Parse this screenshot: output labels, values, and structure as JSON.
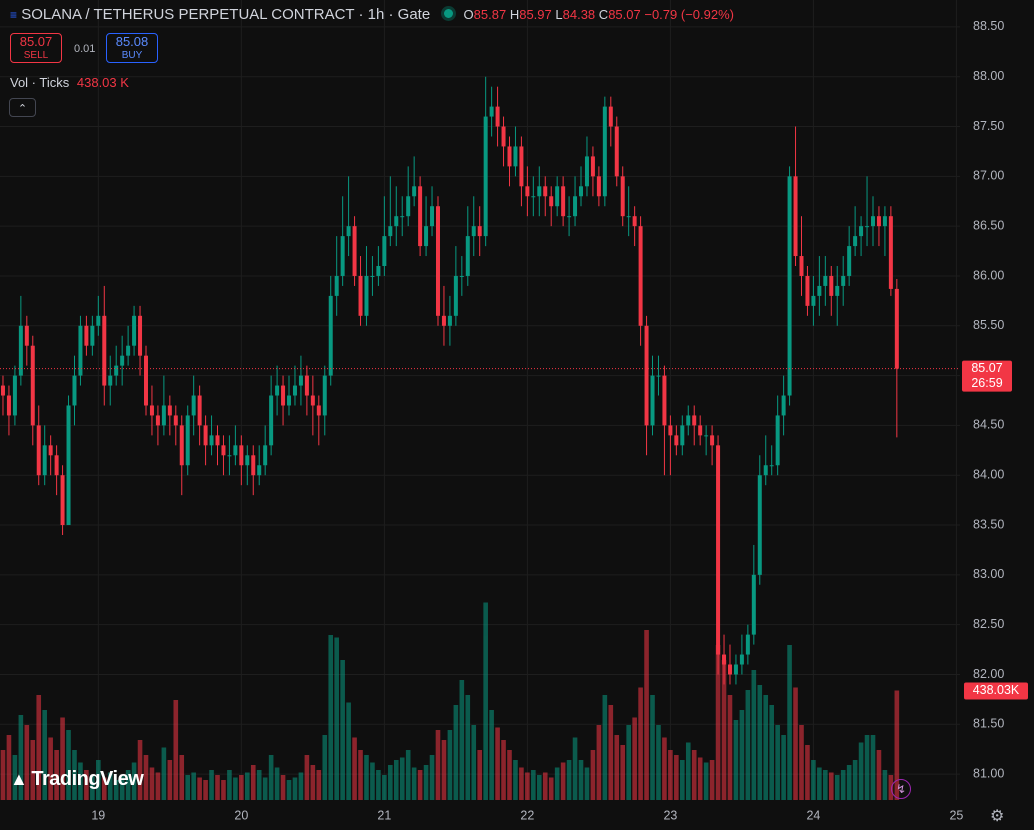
{
  "chart_data": {
    "type": "candlestick",
    "title": "SOLANA / TETHERUS PERPETUAL CONTRACT · 1h · Gate",
    "ohlc_labels": [
      "O",
      "H",
      "L",
      "C"
    ],
    "change_label": "−0.79 (−0.92%)",
    "sell": {
      "price": 85.07,
      "label": "SELL"
    },
    "buy": {
      "price": 85.08,
      "label": "BUY"
    },
    "spread": 0.01,
    "volume_title": "Vol · Ticks",
    "volume_header_label": "438.03 K",
    "volume_tag_label": "438.03K",
    "countdown": "26:59",
    "brand": "TradingView",
    "up_color": "#089981",
    "down_color": "#f23645",
    "open": [
      84.9,
      84.8,
      84.6,
      85.0,
      85.5,
      85.3,
      84.5,
      84.0,
      84.3,
      84.2,
      84.0,
      83.5,
      84.7,
      85.0,
      85.5,
      85.3,
      85.5,
      85.6,
      84.9,
      85.0,
      85.1,
      85.2,
      85.3,
      85.6,
      85.2,
      84.7,
      84.6,
      84.5,
      84.7,
      84.6,
      84.5,
      84.1,
      84.6,
      84.8,
      84.5,
      84.3,
      84.4,
      84.3,
      84.2,
      84.2,
      84.3,
      84.1,
      84.2,
      84.0,
      84.1,
      84.3,
      84.8,
      84.9,
      84.7,
      84.8,
      84.9,
      85.0,
      84.8,
      84.7,
      84.6,
      85.0,
      85.8,
      86.0,
      86.4,
      86.5,
      86.0,
      85.6,
      86.0,
      86.0,
      86.1,
      86.4,
      86.5,
      86.6,
      86.6,
      86.8,
      86.9,
      86.3,
      86.5,
      86.7,
      85.6,
      85.5,
      85.6,
      86.0,
      86.0,
      86.4,
      86.5,
      86.4,
      87.6,
      87.7,
      87.5,
      87.3,
      87.1,
      87.3,
      86.9,
      86.8,
      86.8,
      86.9,
      86.8,
      86.7,
      86.9,
      86.6,
      86.6,
      86.8,
      86.9,
      87.2,
      87.0,
      86.8,
      87.7,
      87.5,
      87.0,
      86.6,
      86.6,
      86.5,
      85.5,
      84.5,
      85.0,
      85.0,
      84.5,
      84.4,
      84.3,
      84.5,
      84.6,
      84.5,
      84.4,
      84.4,
      84.3,
      82.2,
      82.1,
      82.0,
      82.1,
      82.2,
      82.4,
      83.0,
      84.0,
      84.1,
      84.1,
      84.6,
      84.8,
      87.0,
      86.2,
      86.0,
      85.7,
      85.8,
      85.9,
      86.0,
      85.8,
      85.9,
      86.0,
      86.3,
      86.4,
      86.5,
      86.5,
      86.6,
      86.5,
      86.6,
      85.87
    ],
    "high": [
      85.0,
      84.9,
      85.1,
      85.8,
      85.6,
      85.4,
      84.7,
      84.5,
      84.4,
      84.3,
      84.1,
      84.8,
      85.2,
      85.6,
      85.6,
      85.6,
      85.8,
      85.9,
      85.2,
      85.3,
      85.4,
      85.5,
      85.7,
      85.7,
      85.3,
      84.9,
      84.7,
      85.0,
      84.8,
      84.7,
      84.6,
      84.7,
      85.0,
      84.9,
      84.6,
      84.6,
      84.5,
      84.4,
      84.4,
      84.5,
      84.4,
      84.3,
      84.3,
      84.3,
      84.5,
      85.0,
      85.1,
      85.0,
      85.0,
      85.1,
      85.2,
      85.1,
      85.0,
      84.8,
      85.1,
      86.0,
      86.4,
      86.8,
      87.0,
      86.6,
      86.2,
      86.3,
      86.2,
      86.3,
      86.8,
      87.0,
      86.9,
      86.8,
      87.1,
      87.2,
      87.0,
      86.8,
      86.9,
      86.8,
      85.9,
      85.8,
      86.3,
      86.2,
      86.7,
      86.8,
      86.7,
      88.0,
      87.9,
      87.9,
      87.6,
      87.4,
      87.5,
      87.4,
      87.1,
      87.0,
      87.1,
      87.0,
      86.9,
      87.0,
      87.0,
      86.8,
      87.0,
      87.1,
      87.4,
      87.3,
      87.1,
      87.8,
      87.8,
      87.6,
      87.1,
      86.9,
      86.7,
      86.6,
      85.6,
      85.2,
      85.2,
      85.1,
      84.6,
      84.5,
      84.6,
      84.7,
      84.7,
      84.6,
      84.5,
      84.5,
      84.4,
      82.4,
      82.3,
      82.2,
      82.4,
      82.5,
      83.3,
      84.2,
      84.4,
      84.3,
      84.8,
      85.0,
      87.1,
      87.5,
      86.6,
      86.1,
      86.0,
      86.2,
      86.2,
      86.1,
      86.1,
      86.2,
      86.5,
      86.7,
      86.6,
      87.0,
      86.8,
      86.7,
      86.7,
      86.7,
      85.97
    ],
    "low": [
      84.6,
      84.4,
      84.5,
      84.9,
      85.1,
      84.3,
      83.9,
      83.9,
      84.0,
      83.8,
      83.4,
      83.5,
      84.5,
      84.9,
      85.2,
      85.2,
      85.4,
      84.7,
      84.7,
      84.9,
      84.9,
      85.1,
      85.2,
      85.0,
      84.6,
      84.4,
      84.3,
      84.4,
      84.4,
      84.3,
      83.8,
      84.0,
      84.4,
      84.3,
      84.1,
      84.2,
      84.1,
      84.0,
      84.0,
      84.1,
      83.9,
      83.9,
      83.8,
      83.9,
      84.0,
      84.2,
      84.6,
      84.5,
      84.6,
      84.7,
      84.7,
      84.6,
      84.4,
      84.3,
      84.4,
      84.9,
      85.6,
      85.9,
      86.2,
      85.9,
      85.5,
      85.5,
      85.8,
      85.9,
      86.0,
      86.3,
      86.3,
      86.4,
      86.5,
      86.7,
      86.2,
      86.2,
      86.4,
      85.5,
      85.3,
      85.3,
      85.5,
      85.8,
      85.9,
      86.2,
      86.2,
      86.3,
      87.4,
      87.3,
      87.1,
      86.9,
      87.0,
      86.7,
      86.6,
      86.6,
      86.6,
      86.6,
      86.5,
      86.6,
      86.5,
      86.4,
      86.5,
      86.7,
      86.8,
      86.8,
      86.7,
      86.7,
      87.3,
      86.9,
      86.5,
      86.4,
      86.3,
      85.3,
      84.2,
      84.4,
      84.8,
      84.0,
      84.0,
      84.2,
      84.2,
      84.4,
      84.3,
      84.3,
      84.2,
      84.1,
      82.0,
      81.9,
      81.9,
      81.9,
      82.0,
      82.1,
      82.3,
      82.9,
      83.9,
      84.0,
      84.0,
      84.4,
      84.7,
      86.1,
      85.8,
      85.6,
      85.5,
      85.6,
      85.7,
      85.6,
      85.5,
      85.7,
      85.9,
      86.2,
      86.2,
      86.3,
      86.3,
      86.3,
      86.2,
      85.8,
      84.38
    ],
    "close": [
      84.8,
      84.6,
      85.0,
      85.5,
      85.3,
      84.5,
      84.0,
      84.3,
      84.2,
      84.0,
      83.5,
      84.7,
      85.0,
      85.5,
      85.3,
      85.5,
      85.6,
      84.9,
      85.0,
      85.1,
      85.2,
      85.3,
      85.6,
      85.2,
      84.7,
      84.6,
      84.5,
      84.7,
      84.6,
      84.5,
      84.1,
      84.6,
      84.8,
      84.5,
      84.3,
      84.4,
      84.3,
      84.2,
      84.2,
      84.3,
      84.1,
      84.2,
      84.0,
      84.1,
      84.3,
      84.8,
      84.9,
      84.7,
      84.8,
      84.9,
      85.0,
      84.8,
      84.7,
      84.6,
      85.0,
      85.8,
      86.0,
      86.4,
      86.5,
      86.0,
      85.6,
      86.0,
      86.0,
      86.1,
      86.4,
      86.5,
      86.6,
      86.6,
      86.8,
      86.9,
      86.3,
      86.5,
      86.7,
      85.6,
      85.5,
      85.6,
      86.0,
      86.0,
      86.4,
      86.5,
      86.4,
      87.6,
      87.7,
      87.5,
      87.3,
      87.1,
      87.3,
      86.9,
      86.8,
      86.8,
      86.9,
      86.8,
      86.7,
      86.9,
      86.6,
      86.6,
      86.8,
      86.9,
      87.2,
      87.0,
      86.8,
      87.7,
      87.5,
      87.0,
      86.6,
      86.6,
      86.5,
      85.5,
      84.5,
      85.0,
      85.0,
      84.5,
      84.4,
      84.3,
      84.5,
      84.6,
      84.5,
      84.4,
      84.4,
      84.3,
      82.2,
      82.1,
      82.0,
      82.1,
      82.2,
      82.4,
      83.0,
      84.0,
      84.1,
      84.1,
      84.6,
      84.8,
      87.0,
      86.2,
      86.0,
      85.7,
      85.8,
      85.9,
      86.0,
      85.8,
      85.9,
      86.0,
      86.3,
      86.4,
      86.5,
      86.5,
      86.6,
      86.5,
      86.6,
      85.87,
      85.07
    ],
    "volume": [
      200,
      260,
      180,
      340,
      300,
      240,
      420,
      360,
      250,
      200,
      330,
      280,
      200,
      150,
      120,
      100,
      160,
      90,
      110,
      80,
      100,
      120,
      150,
      240,
      180,
      130,
      110,
      210,
      160,
      400,
      180,
      100,
      110,
      90,
      80,
      120,
      100,
      80,
      120,
      90,
      100,
      110,
      140,
      120,
      90,
      180,
      130,
      100,
      80,
      90,
      110,
      180,
      140,
      120,
      260,
      660,
      650,
      560,
      390,
      250,
      200,
      180,
      150,
      120,
      100,
      140,
      160,
      170,
      200,
      130,
      120,
      140,
      180,
      280,
      240,
      280,
      380,
      480,
      420,
      300,
      200,
      790,
      360,
      290,
      240,
      200,
      160,
      130,
      110,
      120,
      100,
      110,
      90,
      130,
      150,
      160,
      250,
      160,
      130,
      200,
      300,
      420,
      380,
      260,
      220,
      300,
      330,
      450,
      680,
      420,
      300,
      250,
      200,
      180,
      160,
      230,
      200,
      170,
      150,
      160,
      620,
      560,
      420,
      320,
      360,
      440,
      520,
      460,
      420,
      380,
      300,
      260,
      620,
      450,
      300,
      220,
      160,
      130,
      120,
      110,
      100,
      120,
      140,
      160,
      230,
      260,
      260,
      200,
      120,
      100,
      438.03
    ],
    "xlim": [
      -0.5,
      160.6
    ],
    "xticks": [
      {
        "value": 16,
        "label": "19"
      },
      {
        "value": 40,
        "label": "20"
      },
      {
        "value": 64,
        "label": "21"
      },
      {
        "value": 88,
        "label": "22"
      },
      {
        "value": 112,
        "label": "23"
      },
      {
        "value": 136,
        "label": "24"
      },
      {
        "value": 160,
        "label": "25"
      }
    ],
    "ylim": [
      80.74,
      88.77
    ],
    "yticks": [
      {
        "value": 81,
        "label": "81.00"
      },
      {
        "value": 81.5,
        "label": "81.50"
      },
      {
        "value": 82,
        "label": "82.00"
      },
      {
        "value": 82.5,
        "label": "82.50"
      },
      {
        "value": 83,
        "label": "83.00"
      },
      {
        "value": 83.5,
        "label": "83.50"
      },
      {
        "value": 84,
        "label": "84.00"
      },
      {
        "value": 84.5,
        "label": "84.50"
      },
      {
        "value": 85,
        "label": "85.00"
      },
      {
        "value": 85.5,
        "label": "85.50"
      },
      {
        "value": 86,
        "label": "86.00"
      },
      {
        "value": 86.5,
        "label": "86.50"
      },
      {
        "value": 87,
        "label": "87.00"
      },
      {
        "value": 87.5,
        "label": "87.50"
      },
      {
        "value": 88,
        "label": "88.00"
      },
      {
        "value": 88.5,
        "label": "88.50"
      }
    ],
    "volume_ylim": [
      0,
      3200
    ],
    "grid": true
  }
}
